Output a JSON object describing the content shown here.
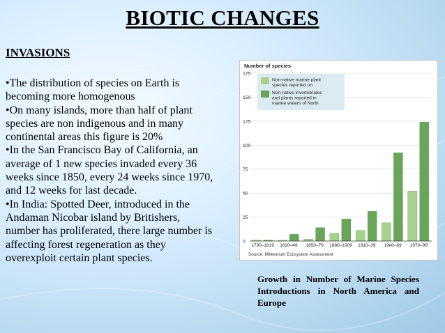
{
  "slide": {
    "title": "BIOTIC CHANGES",
    "subheading": "INVASIONS",
    "bullets": [
      "•The distribution of species on Earth is becoming more homogenous",
      "•On many islands, more than half of plant species are non indigenous and in many continental areas this figure is 20%",
      "•In the San Francisco Bay of California, an average of 1 new species invaded every 36 weeks since 1850, every 24 weeks since 1970, and 12 weeks for last decade.",
      "•In India: Spotted Deer, introduced in the Andaman Nicobar island by Britishers, number has proliferated, there large number is affecting forest regeneration as they overexploit certain plant species."
    ],
    "caption": "Growth in Number of Marine Species Introductions in North America and Europe"
  },
  "colors": {
    "europe_series": "#a9d18e",
    "north_america_series": "#6aa65a",
    "legend_background": "#dcebf2",
    "axis": "#333333"
  },
  "chart_data": {
    "type": "bar",
    "title": "Number of species",
    "categories": [
      "1790–1819",
      "1820–49",
      "1850–79",
      "1880–1909",
      "1910–39",
      "1940–69",
      "1970–99"
    ],
    "series": [
      {
        "name": "Non-native marine plant species reported on European coast",
        "values": [
          1,
          1,
          2,
          8,
          11,
          19,
          52
        ]
      },
      {
        "name": "Non-native invertebrates and plants reported in marine waters of North America",
        "values": [
          1,
          7,
          14,
          23,
          31,
          92,
          124
        ]
      }
    ],
    "yticks": [
      0,
      25,
      50,
      75,
      100,
      125,
      150,
      175
    ],
    "ylim": [
      0,
      175
    ],
    "grid": true,
    "legend_position": "top",
    "source": "Source: Millennium Ecosystem Assessment"
  }
}
